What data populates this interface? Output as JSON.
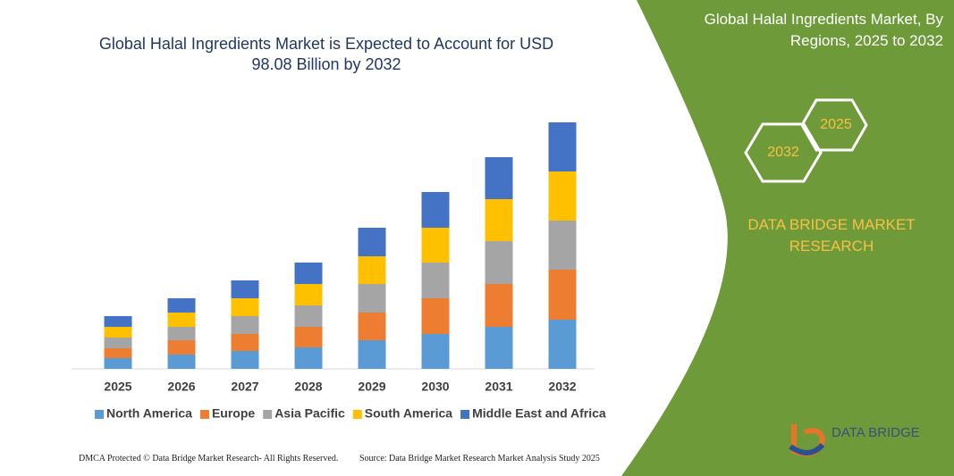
{
  "chart_data": {
    "type": "stacked-bar",
    "title": "Global Halal Ingredients Market is Expected to Account for USD 98.08 Billion by 2032",
    "categories": [
      "2025",
      "2026",
      "2027",
      "2028",
      "2029",
      "2030",
      "2031",
      "2032"
    ],
    "series": [
      {
        "name": "North America",
        "color": "#5b9bd5",
        "values": [
          12,
          16,
          20,
          24,
          32,
          39,
          47,
          55
        ]
      },
      {
        "name": "Europe",
        "color": "#ed7d31",
        "values": [
          11,
          16,
          19,
          23,
          31,
          40,
          48,
          56
        ]
      },
      {
        "name": "Asia Pacific",
        "color": "#a5a5a5",
        "values": [
          12,
          15,
          20,
          24,
          32,
          40,
          48,
          55
        ]
      },
      {
        "name": "South America",
        "color": "#ffc000",
        "values": [
          12,
          16,
          20,
          24,
          31,
          39,
          47,
          55
        ]
      },
      {
        "name": "Middle East and Africa",
        "color": "#4472c4",
        "values": [
          12,
          16,
          20,
          24,
          32,
          40,
          47,
          55
        ]
      }
    ]
  },
  "panel": {
    "title": "Global Halal Ingredients Market, By Regions, 2025 to 2032",
    "badges": [
      "2025",
      "2032"
    ],
    "brand": "DATA BRIDGE MARKET RESEARCH",
    "logo_text": "DATA BRIDGE"
  },
  "footer": {
    "left": "DMCA Protected © Data Bridge Market Research- All Rights Reserved.",
    "right": "Source: Data Bridge Market Research Market Analysis Study 2025"
  }
}
